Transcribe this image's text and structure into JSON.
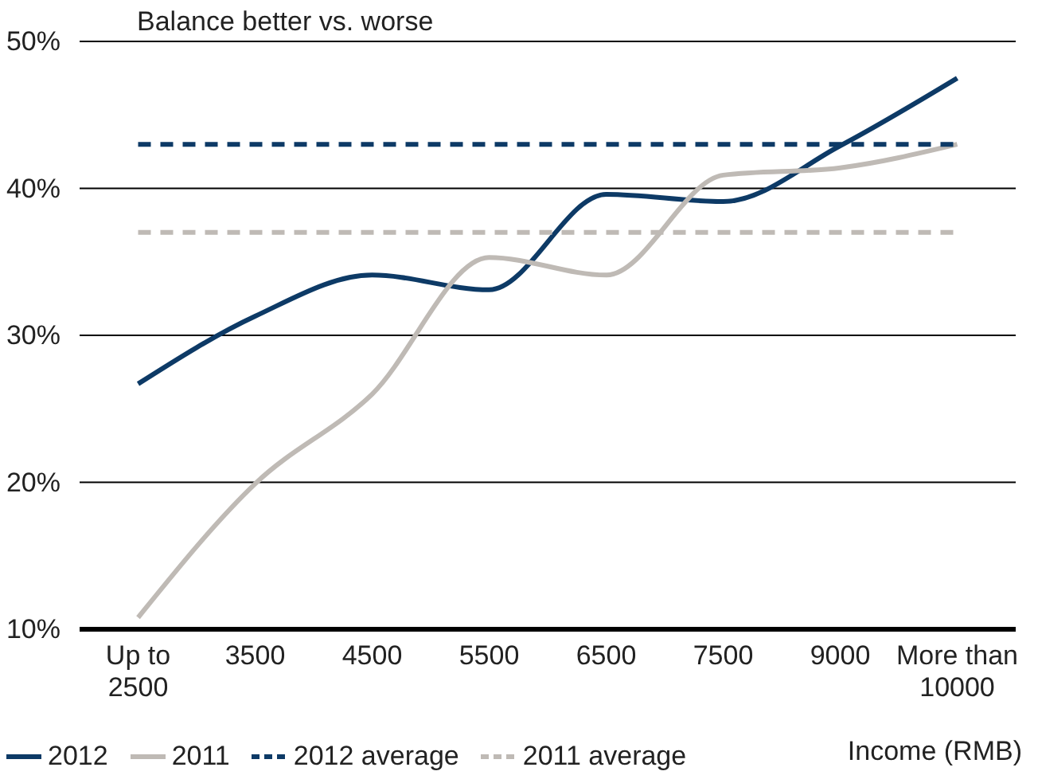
{
  "chart_data": {
    "type": "line",
    "title": "Balance better vs. worse",
    "xlabel": "Income (RMB)",
    "categories": [
      "Up to 2500",
      "3500",
      "4500",
      "5500",
      "6500",
      "7500",
      "9000",
      "More than 10000"
    ],
    "series": [
      {
        "name": "2012",
        "color": "#0d3a66",
        "values": [
          26.7,
          31.3,
          34.1,
          33.1,
          39.6,
          39.1,
          42.9,
          47.5
        ]
      },
      {
        "name": "2011",
        "color": "#bfbab5",
        "values": [
          10.8,
          19.9,
          26.0,
          35.3,
          34.1,
          40.9,
          41.4,
          43.0
        ]
      },
      {
        "name": "2012 average",
        "color": "#0d3a66",
        "line_style": "dashed",
        "values": [
          43,
          43,
          43,
          43,
          43,
          43,
          43,
          43
        ]
      },
      {
        "name": "2011 average",
        "color": "#bfbab5",
        "line_style": "dashed",
        "values": [
          37,
          37,
          37,
          37,
          37,
          37,
          37,
          37
        ]
      }
    ],
    "ylim": [
      10,
      50
    ],
    "yticks": [
      {
        "value": 10,
        "label": "10%"
      },
      {
        "value": 20,
        "label": "20%"
      },
      {
        "value": 30,
        "label": "30%"
      },
      {
        "value": 40,
        "label": "40%"
      },
      {
        "value": 50,
        "label": "50%"
      }
    ],
    "grid": "y",
    "legend": "bottom",
    "marker": "none",
    "line_style": "solid"
  }
}
